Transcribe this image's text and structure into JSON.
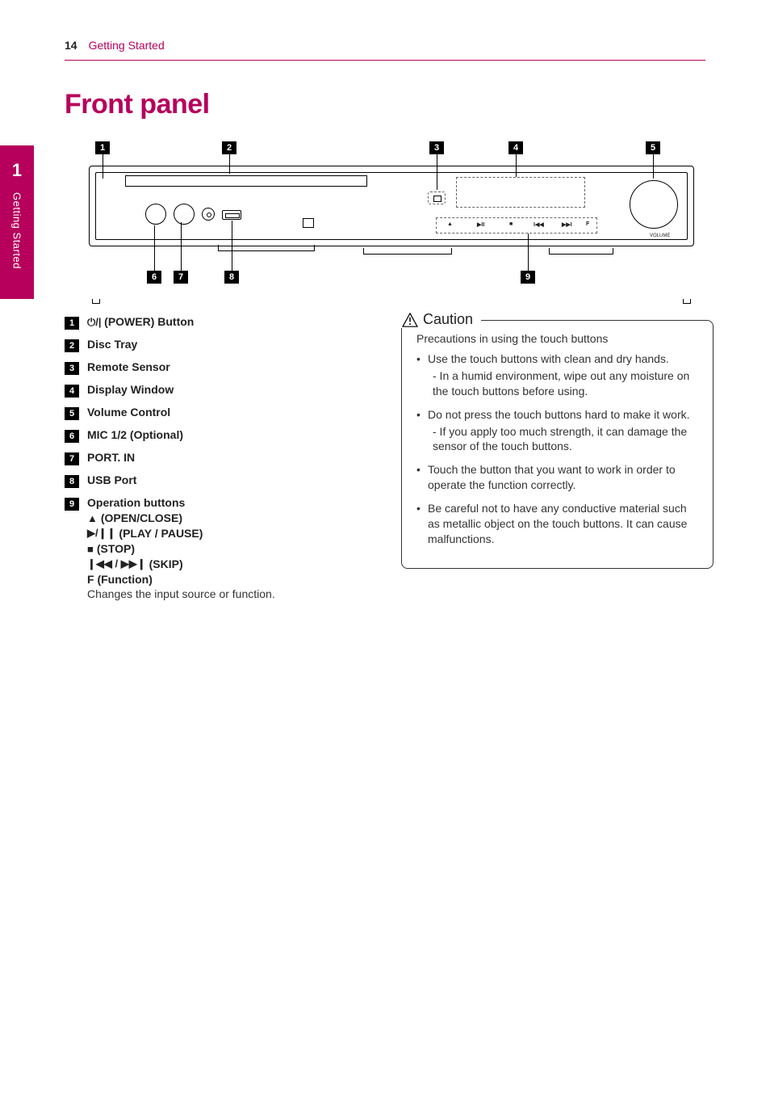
{
  "page": {
    "number": "14",
    "section": "Getting Started"
  },
  "tab": {
    "number": "1",
    "label": "Getting Started"
  },
  "title": "Front panel",
  "diagram": {
    "volume_label": "VOLUME",
    "op_symbols": [
      "▲",
      "▶II",
      "■",
      "I◀◀",
      "▶▶I",
      "F"
    ],
    "callouts": [
      "1",
      "2",
      "3",
      "4",
      "5",
      "6",
      "7",
      "8",
      "9"
    ]
  },
  "legend": [
    {
      "n": "1",
      "icon": "⏻/|",
      "label": "(POWER) Button"
    },
    {
      "n": "2",
      "label": "Disc Tray"
    },
    {
      "n": "3",
      "label": "Remote Sensor"
    },
    {
      "n": "4",
      "label": "Display Window"
    },
    {
      "n": "5",
      "label": "Volume Control"
    },
    {
      "n": "6",
      "label": "MIC 1/2 (Optional)"
    },
    {
      "n": "7",
      "label": "PORT. IN"
    },
    {
      "n": "8",
      "label": "USB Port"
    },
    {
      "n": "9",
      "label": "Operation buttons",
      "subs": [
        {
          "icon": "▲",
          "text": "(OPEN/CLOSE)"
        },
        {
          "icon": "▶/❙❙",
          "text": "(PLAY / PAUSE)"
        },
        {
          "icon": "■",
          "text": "(STOP)"
        },
        {
          "icon": "❙◀◀ / ▶▶❙",
          "text": "(SKIP)"
        },
        {
          "plain": "F (Function)"
        }
      ],
      "desc": "Changes the input source or function."
    }
  ],
  "caution": {
    "title": "Caution",
    "lead": "Precautions in using the touch buttons",
    "items": [
      {
        "text": "Use the touch buttons with clean and dry hands.",
        "sub": "- In a humid environment, wipe out any moisture on the touch buttons before using."
      },
      {
        "text": "Do not press the touch buttons hard to make it work.",
        "sub": "- If you apply too much strength, it can damage the sensor of the touch buttons."
      },
      {
        "text": "Touch the button that you want to work in order to operate the function correctly."
      },
      {
        "text": "Be careful not to have any conductive material such as metallic object on the touch buttons. It can cause malfunctions."
      }
    ]
  }
}
